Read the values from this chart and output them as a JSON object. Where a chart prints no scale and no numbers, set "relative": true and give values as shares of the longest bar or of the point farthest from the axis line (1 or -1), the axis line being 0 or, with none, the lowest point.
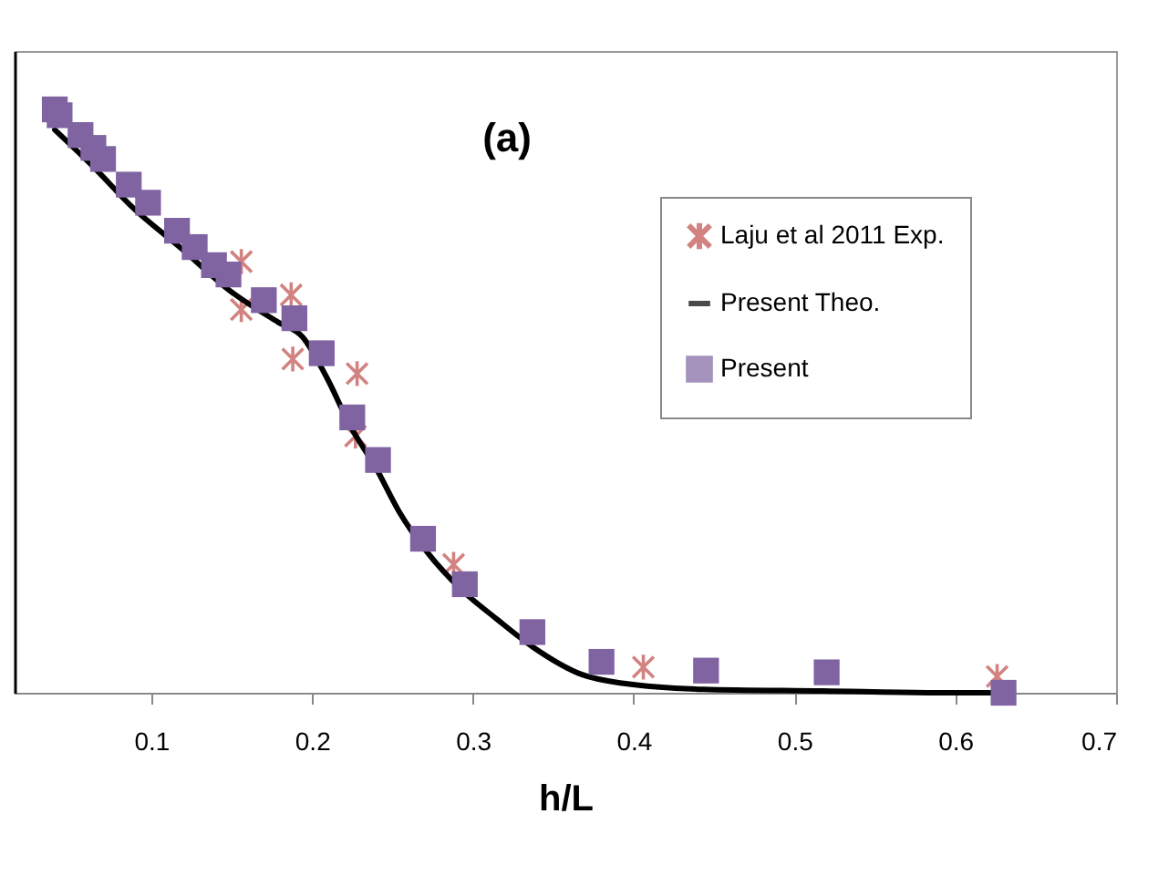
{
  "chart_data": {
    "type": "scatter",
    "xlabel": "h/L",
    "annotations": [
      "(a)"
    ],
    "relative": true,
    "xlim": [
      0.015,
      0.7
    ],
    "xticks": [
      0.1,
      0.2,
      0.3,
      0.4,
      0.5,
      0.6,
      0.7
    ],
    "grid": false,
    "legend": "top right",
    "series": [
      {
        "name": "Laju et al 2011 Exp.",
        "type": "scatter",
        "marker": "cross",
        "color": "#c0504d",
        "x": [
          0.156,
          0.156,
          0.187,
          0.188,
          0.228,
          0.227,
          0.288,
          0.406,
          0.626
        ],
        "values": [
          0.739,
          0.657,
          0.682,
          0.572,
          0.547,
          0.44,
          0.22,
          0.044,
          0.028
        ]
      },
      {
        "name": "Present Theo.",
        "type": "line",
        "line_style": "solid",
        "color": "#000000",
        "x": [
          0.04,
          0.066,
          0.088,
          0.119,
          0.149,
          0.179,
          0.194,
          0.209,
          0.224,
          0.24,
          0.254,
          0.273,
          0.292,
          0.315,
          0.337,
          0.368,
          0.394,
          0.443,
          0.518,
          0.59,
          0.626
        ],
        "values": [
          0.965,
          0.896,
          0.833,
          0.761,
          0.689,
          0.635,
          0.61,
          0.541,
          0.456,
          0.384,
          0.311,
          0.236,
          0.179,
          0.126,
          0.079,
          0.031,
          0.016,
          0.006,
          0.003,
          0.0,
          0.0
        ]
      },
      {
        "name": "Present",
        "type": "scatter",
        "marker": "square",
        "color": "#8064a2",
        "x": [
          0.04,
          0.043,
          0.056,
          0.064,
          0.07,
          0.086,
          0.098,
          0.116,
          0.127,
          0.139,
          0.148,
          0.17,
          0.189,
          0.206,
          0.225,
          0.241,
          0.269,
          0.295,
          0.337,
          0.38,
          0.445,
          0.52,
          0.63
        ],
        "values": [
          1.0,
          0.99,
          0.956,
          0.934,
          0.915,
          0.871,
          0.84,
          0.792,
          0.764,
          0.733,
          0.717,
          0.673,
          0.642,
          0.582,
          0.472,
          0.399,
          0.264,
          0.186,
          0.104,
          0.053,
          0.038,
          0.035,
          0.0
        ]
      }
    ]
  }
}
